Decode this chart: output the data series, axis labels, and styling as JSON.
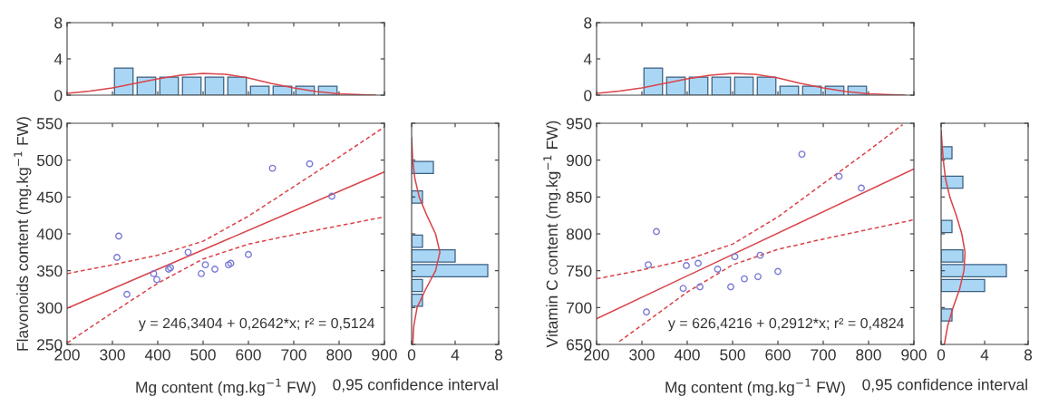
{
  "chart_data": [
    {
      "type": "histogram",
      "bins": [
        300,
        350,
        400,
        450,
        500,
        550,
        600,
        650,
        700,
        750,
        800
      ],
      "values": [
        3,
        2,
        2,
        2,
        2,
        2,
        1,
        1,
        1,
        1
      ],
      "color": "#a9d6f5",
      "xlim": [
        200,
        900
      ],
      "xticks": [
        {
          "value": 200,
          "label": null
        },
        {
          "value": 300,
          "label": null
        },
        {
          "value": 400,
          "label": null
        },
        {
          "value": 500,
          "label": null
        },
        {
          "value": 600,
          "label": null
        },
        {
          "value": 700,
          "label": null
        },
        {
          "value": 800,
          "label": null
        },
        {
          "value": 900,
          "label": null
        }
      ],
      "ylim": [
        0,
        8
      ],
      "yticks": [
        0,
        4,
        8
      ],
      "tick_labels": "y",
      "grid": false,
      "series": [
        {
          "type": "line",
          "color": "#d9444a",
          "x": [
            200,
            250,
            300,
            350,
            400,
            450,
            500,
            550,
            600,
            650,
            700,
            750,
            800,
            850,
            880
          ],
          "values": [
            0.2,
            0.45,
            0.8,
            1.3,
            1.8,
            2.2,
            2.4,
            2.3,
            1.9,
            1.3,
            0.8,
            0.4,
            0.15,
            0.05,
            0
          ]
        }
      ]
    },
    {
      "type": "histogram",
      "bins": [
        300,
        350,
        400,
        450,
        500,
        550,
        600,
        650,
        700,
        750,
        800
      ],
      "values": [
        3,
        2,
        2,
        2,
        2,
        2,
        1,
        1,
        1,
        1
      ],
      "color": "#a9d6f5",
      "xlim": [
        200,
        900
      ],
      "xticks": [
        {
          "value": 200,
          "label": null
        },
        {
          "value": 300,
          "label": null
        },
        {
          "value": 400,
          "label": null
        },
        {
          "value": 500,
          "label": null
        },
        {
          "value": 600,
          "label": null
        },
        {
          "value": 700,
          "label": null
        },
        {
          "value": 800,
          "label": null
        },
        {
          "value": 900,
          "label": null
        }
      ],
      "ylim": [
        0,
        8
      ],
      "yticks": [
        0,
        4,
        8
      ],
      "tick_labels": "y",
      "grid": false,
      "series": [
        {
          "type": "line",
          "color": "#d9444a",
          "x": [
            200,
            250,
            300,
            350,
            400,
            450,
            500,
            550,
            600,
            650,
            700,
            750,
            800,
            850,
            880
          ],
          "values": [
            0.2,
            0.45,
            0.8,
            1.3,
            1.8,
            2.2,
            2.4,
            2.3,
            1.9,
            1.3,
            0.8,
            0.4,
            0.15,
            0.05,
            0
          ]
        }
      ]
    },
    {
      "type": "scatter",
      "xlabel": "Mg content (mg.kg$^{−1}$ FW)",
      "ylabel": "Flavonoids content (mg.kg$^{−1}$ FW)",
      "xlim": [
        200,
        900
      ],
      "xticks": [
        200,
        300,
        400,
        500,
        600,
        700,
        800,
        900
      ],
      "ylim": [
        250,
        550
      ],
      "yticks": [
        250,
        300,
        350,
        400,
        450,
        500,
        550
      ],
      "grid": false,
      "annotations": [
        "y = 246,3404 + 0,2642*x; r² = 0,5124"
      ],
      "series": [
        {
          "type": "scatter",
          "marker": "circle",
          "color": "#7a7ad6",
          "x": [
            310,
            314,
            332,
            391,
            398,
            424,
            428,
            467,
            496,
            505,
            526,
            556,
            561,
            600,
            653,
            735,
            784
          ],
          "values": [
            368,
            397,
            318,
            346,
            338,
            352,
            354,
            375,
            346,
            358,
            352,
            358,
            360,
            372,
            489,
            495,
            451
          ]
        },
        {
          "type": "line",
          "color": "#d9444a",
          "line_style": "solid",
          "x": [
            200,
            900
          ],
          "values": [
            299,
            484
          ]
        },
        {
          "type": "line",
          "color": "#d9444a",
          "line_style": "dashed",
          "x": [
            200,
            300,
            400,
            500,
            600,
            700,
            800,
            900
          ],
          "values": [
            346,
            358,
            371,
            390,
            424,
            464,
            504,
            545
          ]
        },
        {
          "type": "line",
          "color": "#d9444a",
          "line_style": "dashed",
          "x": [
            200,
            300,
            400,
            500,
            600,
            700,
            800,
            900
          ],
          "values": [
            252,
            293,
            333,
            366,
            386,
            399,
            411,
            423
          ]
        }
      ]
    },
    {
      "type": "histogram",
      "orientation": "horizontal",
      "xlabel": "0,95 confidence interval",
      "bins": [
        300,
        320,
        340,
        360,
        380,
        400,
        420,
        440,
        460,
        480,
        500
      ],
      "values": [
        1,
        1,
        7,
        4,
        1,
        0,
        0,
        1,
        0,
        2
      ],
      "color": "#a9d6f5",
      "xlim": [
        0,
        8
      ],
      "xticks": [
        0,
        4,
        8
      ],
      "ylim": [
        250,
        550
      ],
      "yticks": [
        {
          "value": 250,
          "label": null
        },
        {
          "value": 300,
          "label": null
        },
        {
          "value": 350,
          "label": null
        },
        {
          "value": 400,
          "label": null
        },
        {
          "value": 450,
          "label": null
        },
        {
          "value": 500,
          "label": null
        },
        {
          "value": 550,
          "label": null
        }
      ],
      "tick_labels": "x",
      "grid": false,
      "series": [
        {
          "type": "line",
          "color": "#d9444a",
          "x": [
            250,
            275,
            300,
            325,
            350,
            375,
            400,
            425,
            450,
            475,
            500,
            530
          ],
          "values": [
            0.1,
            0.2,
            0.5,
            1.3,
            2.2,
            2.6,
            2.2,
            1.4,
            0.7,
            0.3,
            0.1,
            0
          ]
        }
      ]
    },
    {
      "type": "scatter",
      "xlabel": "Mg content (mg.kg$^{−1}$ FW)",
      "ylabel": "Vitamin C content (mg.kg$^{−1}$ FW)",
      "xlim": [
        200,
        900
      ],
      "xticks": [
        200,
        300,
        400,
        500,
        600,
        700,
        800,
        900
      ],
      "ylim": [
        650,
        950
      ],
      "yticks": [
        650,
        700,
        750,
        800,
        850,
        900,
        950
      ],
      "grid": false,
      "annotations": [
        "y = 626,4216 + 0,2912*x; r² = 0,4824"
      ],
      "series": [
        {
          "type": "scatter",
          "marker": "circle",
          "color": "#7a7ad6",
          "x": [
            310,
            314,
            332,
            391,
            398,
            424,
            428,
            467,
            496,
            505,
            526,
            556,
            561,
            600,
            653,
            735,
            784
          ],
          "values": [
            694,
            758,
            803,
            726,
            757,
            760,
            728,
            752,
            728,
            769,
            739,
            742,
            771,
            749,
            908,
            878,
            862
          ]
        },
        {
          "type": "line",
          "color": "#d9444a",
          "line_style": "solid",
          "x": [
            200,
            900
          ],
          "values": [
            685,
            888
          ]
        },
        {
          "type": "line",
          "color": "#d9444a",
          "line_style": "dashed",
          "x": [
            200,
            300,
            400,
            500,
            600,
            700,
            800,
            875
          ],
          "values": [
            739,
            751,
            765,
            786,
            823,
            868,
            913,
            948
          ]
        },
        {
          "type": "line",
          "color": "#d9444a",
          "line_style": "dashed",
          "x": [
            250,
            300,
            400,
            500,
            600,
            700,
            800,
            900
          ],
          "values": [
            654,
            676,
            721,
            758,
            779,
            793,
            806,
            819
          ]
        }
      ]
    },
    {
      "type": "histogram",
      "orientation": "horizontal",
      "xlabel": "0,95 confidence interval",
      "bins": [
        680,
        700,
        720,
        740,
        760,
        780,
        800,
        820,
        840,
        860,
        880,
        900,
        920
      ],
      "values": [
        1,
        0,
        4,
        6,
        2,
        0,
        1,
        0,
        0,
        2,
        0,
        1
      ],
      "color": "#a9d6f5",
      "xlim": [
        0,
        8
      ],
      "xticks": [
        0,
        4,
        8
      ],
      "ylim": [
        650,
        950
      ],
      "yticks": [
        {
          "value": 650,
          "label": null
        },
        {
          "value": 700,
          "label": null
        },
        {
          "value": 750,
          "label": null
        },
        {
          "value": 800,
          "label": null
        },
        {
          "value": 850,
          "label": null
        },
        {
          "value": 900,
          "label": null
        },
        {
          "value": 950,
          "label": null
        }
      ],
      "tick_labels": "x",
      "grid": false,
      "series": [
        {
          "type": "line",
          "color": "#d9444a",
          "x": [
            650,
            675,
            700,
            725,
            750,
            775,
            800,
            825,
            850,
            875,
            900,
            940
          ],
          "values": [
            0.3,
            0.6,
            1.1,
            1.7,
            2.1,
            2.2,
            1.9,
            1.4,
            0.8,
            0.4,
            0.2,
            0
          ]
        }
      ]
    }
  ]
}
